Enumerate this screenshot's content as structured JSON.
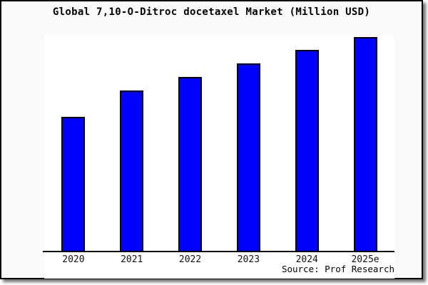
{
  "chart": {
    "title": "Global 7,10-O-Ditroc docetaxel Market (Million USD)",
    "source_label": "Source: Prof Research",
    "bar_color": "#0000ff",
    "bar_border_color": "#000000",
    "plot_background": "#ffffff",
    "page_background": "#fafafa"
  },
  "chart_data": {
    "type": "bar",
    "title": "Global 7,10-O-Ditroc docetaxel Market (Million USD)",
    "categories": [
      "2020",
      "2021",
      "2022",
      "2023",
      "2024",
      "2025e"
    ],
    "values": [
      189,
      226,
      245,
      264,
      283,
      301
    ],
    "values_unit": "relative bar height in px (y-axis has no tick labels in the figure)",
    "normalized_to_max": [
      0.63,
      0.75,
      0.81,
      0.88,
      0.94,
      1.0
    ],
    "xlabel": "",
    "ylabel": "",
    "ylim": [
      0,
      302
    ],
    "grid": false,
    "legend": "none",
    "source": "Prof Research"
  }
}
